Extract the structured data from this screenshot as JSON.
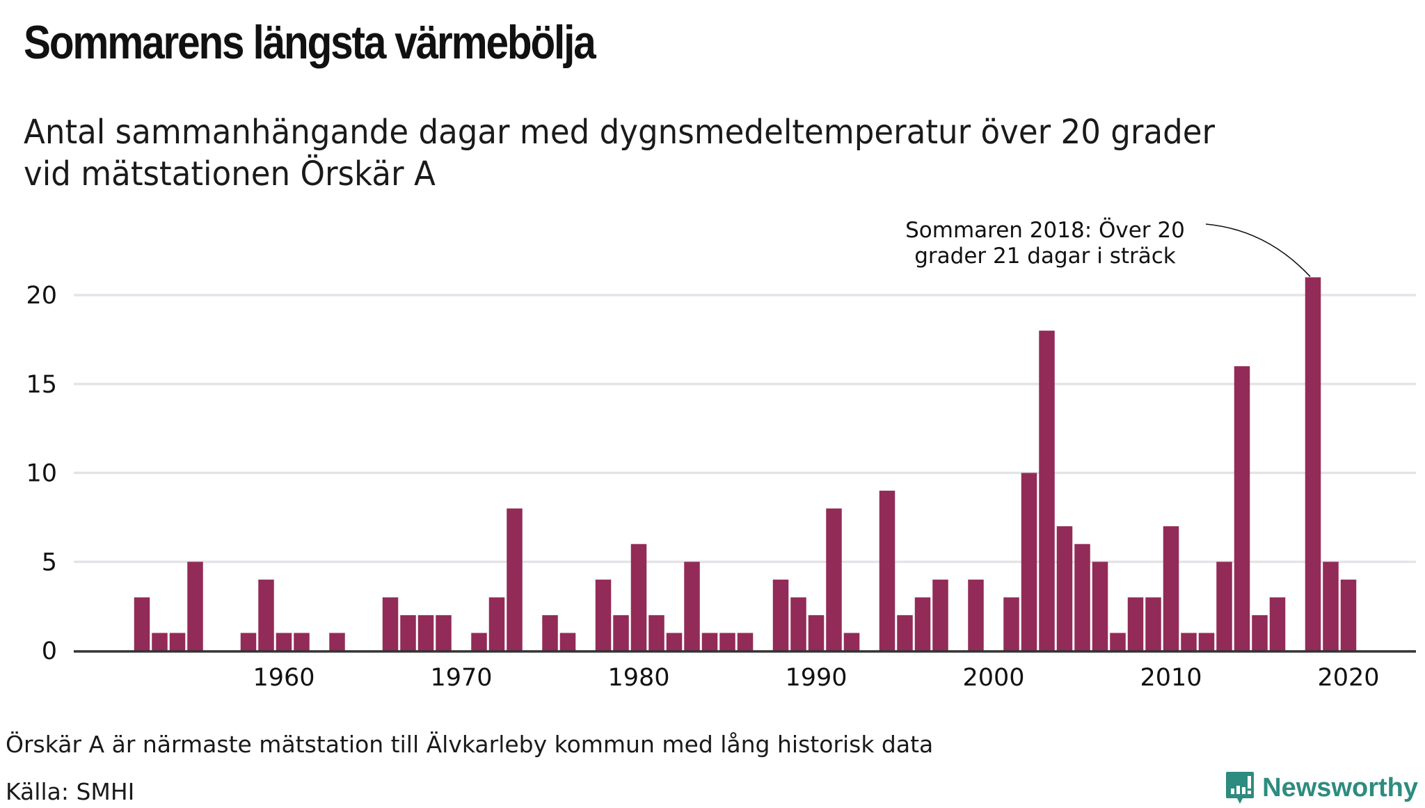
{
  "header": {
    "title": "Sommarens längsta värmebölja",
    "subtitle_line1": "Antal sammanhängande dagar med dygnsmedeltemperatur över 20 grader",
    "subtitle_line2": "vid mätstationen Örskär A"
  },
  "footer": {
    "note": "Örskär A är närmaste mätstation till Älvkarleby kommun med lång historisk data",
    "source": "Källa: SMHI",
    "logo_text": "Newsworthy",
    "logo_icon": "bar-chart-speech-bubble-icon"
  },
  "colors": {
    "bar": "#922b57",
    "grid": "#e4e3e8",
    "axis": "#333333",
    "brand": "#2e8b7f"
  },
  "chart_data": {
    "type": "bar",
    "title": "Sommarens längsta värmebölja",
    "subtitle": "Antal sammanhängande dagar med dygnsmedeltemperatur över 20 grader vid mätstationen Örskär A",
    "xlabel": "",
    "ylabel": "",
    "ylim": [
      0,
      22
    ],
    "yticks": [
      0,
      5,
      10,
      15,
      20
    ],
    "xticks": [
      1960,
      1970,
      1980,
      1990,
      2000,
      2010,
      2020
    ],
    "xlim": [
      1945,
      2023
    ],
    "grid": true,
    "categories": [
      1952,
      1953,
      1954,
      1955,
      1956,
      1957,
      1958,
      1959,
      1960,
      1961,
      1962,
      1963,
      1964,
      1965,
      1966,
      1967,
      1968,
      1969,
      1970,
      1971,
      1972,
      1973,
      1974,
      1975,
      1976,
      1977,
      1978,
      1979,
      1980,
      1981,
      1982,
      1983,
      1984,
      1985,
      1986,
      1987,
      1988,
      1989,
      1990,
      1991,
      1992,
      1993,
      1994,
      1995,
      1996,
      1997,
      1998,
      1999,
      2000,
      2001,
      2002,
      2003,
      2004,
      2005,
      2006,
      2007,
      2008,
      2009,
      2010,
      2011,
      2012,
      2013,
      2014,
      2015,
      2016,
      2017,
      2018,
      2019,
      2020
    ],
    "values": [
      3,
      1,
      1,
      5,
      0,
      0,
      1,
      4,
      1,
      1,
      0,
      1,
      0,
      0,
      3,
      2,
      2,
      2,
      0,
      1,
      3,
      8,
      0,
      2,
      1,
      0,
      4,
      2,
      6,
      2,
      1,
      5,
      1,
      1,
      1,
      0,
      4,
      3,
      2,
      8,
      1,
      0,
      9,
      2,
      3,
      4,
      0,
      4,
      0,
      3,
      10,
      18,
      7,
      6,
      5,
      1,
      3,
      3,
      7,
      1,
      1,
      5,
      16,
      2,
      3,
      0,
      21,
      5,
      4
    ],
    "annotation": {
      "year": 2018,
      "line1": "Sommaren 2018: Över 20",
      "line2": "grader 21 dagar i sträck"
    }
  }
}
